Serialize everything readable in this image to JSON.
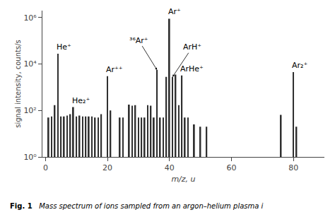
{
  "chart_data": {
    "type": "bar",
    "xlabel": "m/z, u",
    "ylabel": "signal intensity, counts/s",
    "x": [
      1,
      2,
      3,
      4,
      5,
      6,
      7,
      8,
      9,
      10,
      11,
      12,
      13,
      14,
      15,
      16,
      17,
      18,
      20,
      21,
      24,
      25,
      27,
      28,
      29,
      30,
      31,
      32,
      33,
      34,
      35,
      36,
      37,
      38,
      39,
      40,
      41,
      42,
      43,
      44,
      45,
      46,
      48,
      50,
      52,
      76,
      80,
      81
    ],
    "values": [
      50,
      55,
      170,
      28000,
      55,
      55,
      60,
      70,
      140,
      55,
      60,
      55,
      55,
      55,
      55,
      50,
      50,
      70,
      3000,
      100,
      50,
      50,
      180,
      160,
      170,
      50,
      50,
      50,
      170,
      160,
      50,
      5500,
      50,
      50,
      2800,
      900000,
      2800,
      3500,
      170,
      3200,
      50,
      50,
      25,
      20,
      20,
      65,
      4500,
      20
    ],
    "color": "#303030",
    "log": "y",
    "grid": false,
    "xlim": [
      -1,
      90
    ],
    "ylim": [
      1,
      2000000
    ],
    "xticks": [
      0,
      20,
      40,
      60,
      80
    ],
    "yticks": [
      {
        "value": 1,
        "label": "10⁰"
      },
      {
        "value": 100,
        "label": "10²"
      },
      {
        "value": 10000,
        "label": "10⁴"
      },
      {
        "value": 1000000,
        "label": "10⁶"
      }
    ],
    "annotations": [
      {
        "text": "He⁺",
        "x": 4,
        "y": 28000,
        "arrow": false
      },
      {
        "text": "He₂⁺",
        "x": 9,
        "y": 140,
        "arrow": false
      },
      {
        "text": "Ar⁺⁺",
        "x": 20,
        "y": 3000,
        "arrow": false
      },
      {
        "text": "³⁶Ar⁺",
        "x": 36,
        "y": 5500,
        "arrow": true
      },
      {
        "text": "Ar⁺",
        "x": 40,
        "y": 900000,
        "arrow": false
      },
      {
        "text": "ArH⁺",
        "x": 41,
        "y": 2800,
        "arrow": true
      },
      {
        "text": "ArHe⁺",
        "x": 44,
        "y": 3200,
        "arrow": false
      },
      {
        "text": "Ar₂⁺",
        "x": 80,
        "y": 4500,
        "arrow": false
      }
    ],
    "caption": [
      "Fig. 1",
      "Mass spectrum of ions sampled from an argon–helium plasma i"
    ]
  }
}
